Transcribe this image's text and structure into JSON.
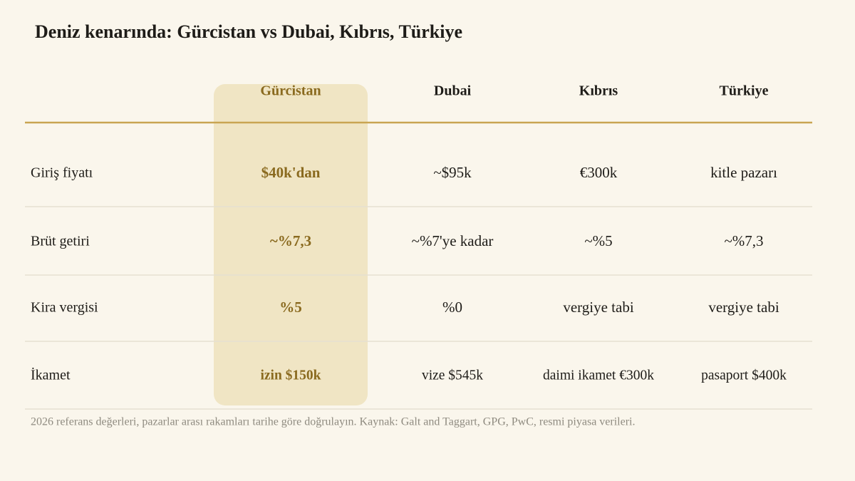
{
  "header": {
    "title": "Deniz kenarında: Gürcistan vs Dubai, Kıbrıs, Türkiye"
  },
  "table": {
    "columns": [
      "Gürcistan",
      "Dubai",
      "Kıbrıs",
      "Türkiye"
    ],
    "rows": [
      [
        "Giriş fiyatı",
        "$40k'dan",
        "~$95k",
        "€300k",
        "kitle pazarı"
      ],
      [
        "Brüt getiri",
        "~%7,3",
        "~%7'ye kadar",
        "~%5",
        "~%7,3"
      ],
      [
        "Kira vergisi",
        "%5",
        "%0",
        "vergiye tabi",
        "vergiye tabi"
      ],
      [
        "İkamet",
        "izin $150k",
        "vize $545k",
        "daimi ikamet €300k",
        "pasaport $400k"
      ]
    ]
  },
  "footer": {
    "note": "2026 referans değerleri, pazarlar arası rakamları tarihe göre doğrulayın. Kaynak: Galt and Taggart, GPG, PwC, resmi piyasa verileri."
  }
}
